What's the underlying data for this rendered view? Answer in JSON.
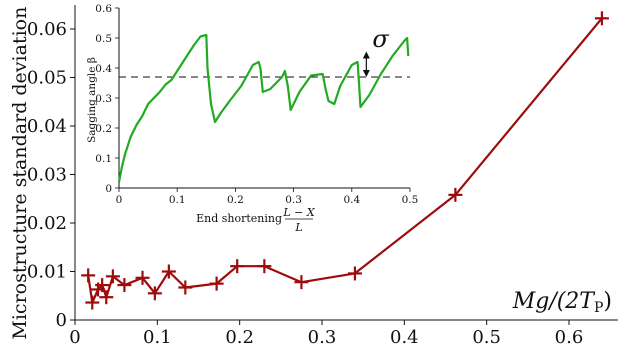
{
  "chart_data": [
    {
      "type": "line",
      "ylabel": "Microstructure standard deviation",
      "ylabel_symbol": "σ",
      "xlabel": "Mg/(2T",
      "xlabel_sub": "P",
      "xlabel_end": ")",
      "xlim": [
        0,
        0.65
      ],
      "ylim": [
        0,
        0.065
      ],
      "xticks": [
        "0",
        "0.1",
        "0.2",
        "0.3",
        "0.4",
        "0.5",
        "0.6"
      ],
      "yticks": [
        "0",
        "0.01",
        "0.02",
        "0.03",
        "0.04",
        "0.05",
        "0.06"
      ],
      "grid": false,
      "color": "#9e0b0b",
      "marker": "plus",
      "series": [
        {
          "x": [
            0.016,
            0.021,
            0.028,
            0.033,
            0.038,
            0.046,
            0.06,
            0.082,
            0.097,
            0.114,
            0.134,
            0.172,
            0.197,
            0.23,
            0.275,
            0.34,
            0.462,
            0.64
          ],
          "y": [
            0.0092,
            0.0036,
            0.0063,
            0.0072,
            0.0047,
            0.009,
            0.0072,
            0.0087,
            0.0055,
            0.01,
            0.0067,
            0.0075,
            0.0111,
            0.0111,
            0.0078,
            0.0096,
            0.0258,
            0.0622
          ]
        }
      ]
    },
    {
      "type": "line",
      "ylabel": "Sagging angle β",
      "xlabel": "End shortening",
      "xlabel_fraction": {
        "numerator": "L − X",
        "denominator": "L"
      },
      "xlim": [
        0,
        0.5
      ],
      "ylim": [
        0,
        0.6
      ],
      "xticks": [
        "0",
        "0.1",
        "0.2",
        "0.3",
        "0.4",
        "0.5"
      ],
      "yticks": [
        "0",
        "0.1",
        "0.2",
        "0.3",
        "0.4",
        "0.5",
        "0.6"
      ],
      "grid": false,
      "color": "#22aa22",
      "reference_line_y": 0.37,
      "annotation": "σ",
      "series": [
        {
          "x": [
            0,
            0.005,
            0.01,
            0.02,
            0.03,
            0.04,
            0.05,
            0.06,
            0.07,
            0.08,
            0.09,
            0.1,
            0.11,
            0.12,
            0.13,
            0.14,
            0.15,
            0.152,
            0.158,
            0.165,
            0.175,
            0.19,
            0.21,
            0.23,
            0.24,
            0.243,
            0.247,
            0.26,
            0.28,
            0.285,
            0.29,
            0.295,
            0.31,
            0.33,
            0.35,
            0.355,
            0.36,
            0.37,
            0.38,
            0.4,
            0.41,
            0.412,
            0.415,
            0.43,
            0.45,
            0.47,
            0.49,
            0.495,
            0.497
          ],
          "y": [
            0.02,
            0.07,
            0.11,
            0.17,
            0.21,
            0.24,
            0.28,
            0.3,
            0.32,
            0.345,
            0.36,
            0.39,
            0.42,
            0.45,
            0.48,
            0.505,
            0.51,
            0.4,
            0.28,
            0.22,
            0.25,
            0.29,
            0.34,
            0.41,
            0.42,
            0.4,
            0.32,
            0.33,
            0.37,
            0.39,
            0.34,
            0.26,
            0.32,
            0.375,
            0.38,
            0.33,
            0.29,
            0.28,
            0.34,
            0.41,
            0.42,
            0.36,
            0.27,
            0.31,
            0.38,
            0.44,
            0.49,
            0.5,
            0.44
          ]
        }
      ]
    }
  ]
}
